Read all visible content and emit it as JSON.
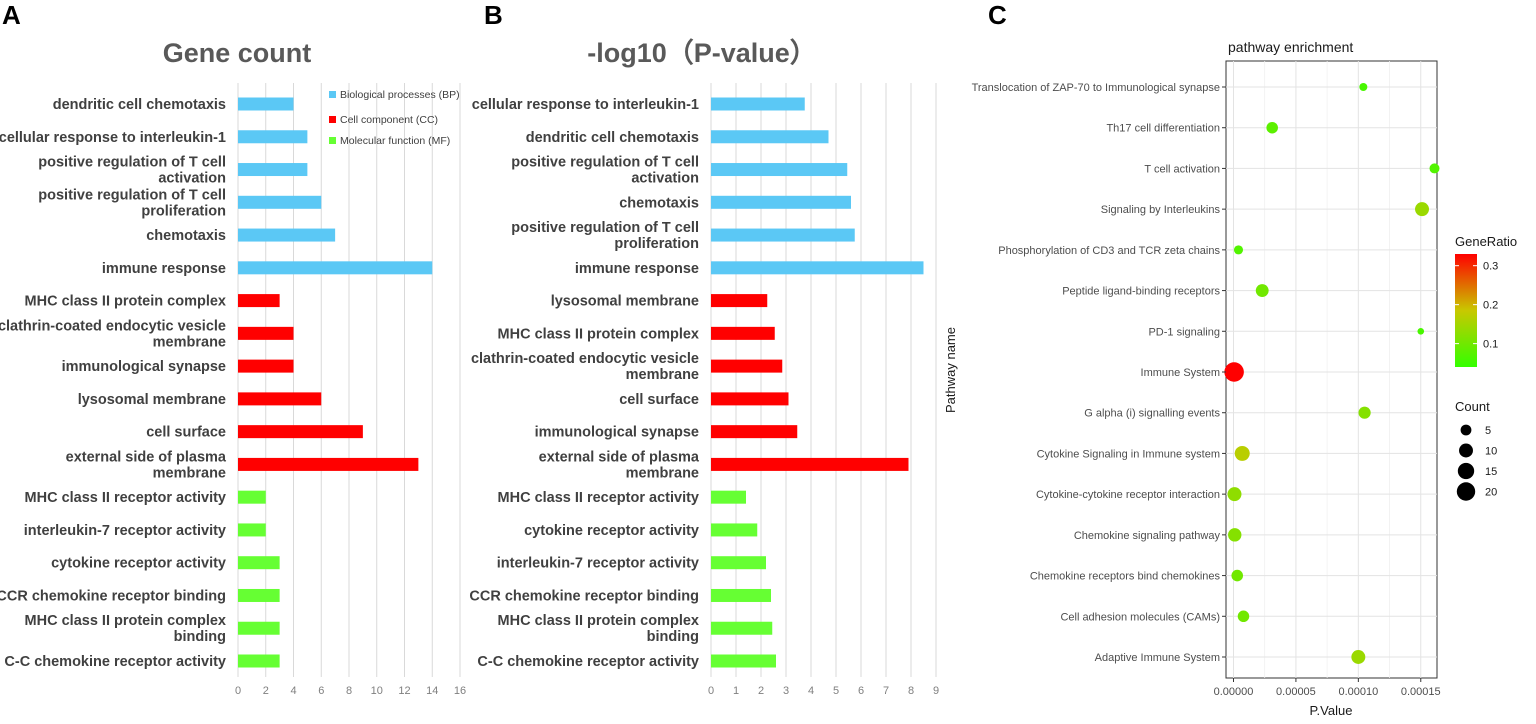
{
  "panel_labels": [
    "A",
    "B",
    "C"
  ],
  "colors": {
    "BP": "#5bc8f5",
    "CC": "#ff0000",
    "MF": "#66ff33"
  },
  "chart_data": [
    {
      "panel": "A",
      "type": "bar",
      "orientation": "horizontal",
      "title": "Gene count",
      "xlim": [
        0,
        16
      ],
      "xticks": [
        "0",
        "2",
        "4",
        "6",
        "8",
        "10",
        "12",
        "14",
        "16"
      ],
      "legend": [
        {
          "key": "BP",
          "label": "Biological processes (BP)"
        },
        {
          "key": "CC",
          "label": "Cell component (CC)"
        },
        {
          "key": "MF",
          "label": "Molecular function (MF)"
        }
      ],
      "categories": [
        {
          "label": [
            "dendritic cell chemotaxis"
          ],
          "value": 4,
          "group": "BP"
        },
        {
          "label": [
            "cellular response to interleukin-1"
          ],
          "value": 5,
          "group": "BP"
        },
        {
          "label": [
            "positive regulation of T cell",
            "activation"
          ],
          "value": 5,
          "group": "BP"
        },
        {
          "label": [
            "positive regulation of T cell",
            "proliferation"
          ],
          "value": 6,
          "group": "BP"
        },
        {
          "label": [
            "chemotaxis"
          ],
          "value": 7,
          "group": "BP"
        },
        {
          "label": [
            "immune response"
          ],
          "value": 14,
          "group": "BP"
        },
        {
          "label": [
            "MHC class II protein complex"
          ],
          "value": 3,
          "group": "CC"
        },
        {
          "label": [
            "clathrin-coated endocytic vesicle",
            "membrane"
          ],
          "value": 4,
          "group": "CC"
        },
        {
          "label": [
            "immunological synapse"
          ],
          "value": 4,
          "group": "CC"
        },
        {
          "label": [
            "lysosomal membrane"
          ],
          "value": 6,
          "group": "CC"
        },
        {
          "label": [
            "cell surface"
          ],
          "value": 9,
          "group": "CC"
        },
        {
          "label": [
            "external side of plasma",
            "membrane"
          ],
          "value": 13,
          "group": "CC"
        },
        {
          "label": [
            "MHC class II receptor activity"
          ],
          "value": 2,
          "group": "MF"
        },
        {
          "label": [
            "interleukin-7 receptor activity"
          ],
          "value": 2,
          "group": "MF"
        },
        {
          "label": [
            "cytokine receptor activity"
          ],
          "value": 3,
          "group": "MF"
        },
        {
          "label": [
            "CCR chemokine receptor binding"
          ],
          "value": 3,
          "group": "MF"
        },
        {
          "label": [
            "MHC class II protein complex",
            "binding"
          ],
          "value": 3,
          "group": "MF"
        },
        {
          "label": [
            "C-C chemokine receptor activity"
          ],
          "value": 3,
          "group": "MF"
        }
      ]
    },
    {
      "panel": "B",
      "type": "bar",
      "orientation": "horizontal",
      "title": "-log10（P-value）",
      "xlim": [
        0,
        9
      ],
      "xticks": [
        "0",
        "1",
        "2",
        "3",
        "4",
        "5",
        "6",
        "7",
        "8",
        "9"
      ],
      "categories": [
        {
          "label": [
            "cellular response to interleukin-1"
          ],
          "value": 3.75,
          "group": "BP"
        },
        {
          "label": [
            "dendritic cell chemotaxis"
          ],
          "value": 4.7,
          "group": "BP"
        },
        {
          "label": [
            "positive regulation of T cell",
            "activation"
          ],
          "value": 5.45,
          "group": "BP"
        },
        {
          "label": [
            "chemotaxis"
          ],
          "value": 5.6,
          "group": "BP"
        },
        {
          "label": [
            "positive regulation of T cell",
            "proliferation"
          ],
          "value": 5.75,
          "group": "BP"
        },
        {
          "label": [
            "immune response"
          ],
          "value": 8.5,
          "group": "BP"
        },
        {
          "label": [
            "lysosomal membrane"
          ],
          "value": 2.25,
          "group": "CC"
        },
        {
          "label": [
            "MHC class II protein complex"
          ],
          "value": 2.55,
          "group": "CC"
        },
        {
          "label": [
            "clathrin-coated endocytic vesicle",
            "membrane"
          ],
          "value": 2.85,
          "group": "CC"
        },
        {
          "label": [
            "cell surface"
          ],
          "value": 3.1,
          "group": "CC"
        },
        {
          "label": [
            "immunological synapse"
          ],
          "value": 3.45,
          "group": "CC"
        },
        {
          "label": [
            "external side of plasma",
            "membrane"
          ],
          "value": 7.9,
          "group": "CC"
        },
        {
          "label": [
            "MHC class II receptor activity"
          ],
          "value": 1.4,
          "group": "MF"
        },
        {
          "label": [
            "cytokine receptor activity"
          ],
          "value": 1.85,
          "group": "MF"
        },
        {
          "label": [
            "interleukin-7 receptor activity"
          ],
          "value": 2.2,
          "group": "MF"
        },
        {
          "label": [
            "CCR chemokine receptor binding"
          ],
          "value": 2.4,
          "group": "MF"
        },
        {
          "label": [
            "MHC class II protein complex",
            "binding"
          ],
          "value": 2.45,
          "group": "MF"
        },
        {
          "label": [
            "C-C chemokine receptor activity"
          ],
          "value": 2.6,
          "group": "MF"
        }
      ]
    },
    {
      "panel": "C",
      "type": "scatter",
      "title": "pathway   enrichment",
      "xlabel": "P.Value",
      "ylabel": "Pathway name",
      "xlim": [
        -6e-06,
        0.000163
      ],
      "xticks": [
        0,
        5e-05,
        0.0001,
        0.00015
      ],
      "xtick_labels": [
        "0.00000",
        "0.00005",
        "0.00010",
        "0.00015"
      ],
      "color_legend": {
        "title": "GeneRatio",
        "range": [
          0.04,
          0.33
        ],
        "ticks": [
          0.1,
          0.2,
          0.3
        ],
        "tick_labels": [
          "0.1",
          "0.2",
          "0.3"
        ],
        "low_color": "#33ff00",
        "mid_color": "#c8c800",
        "high_color": "#ff0000"
      },
      "size_legend": {
        "title": "Count",
        "values": [
          5,
          10,
          15,
          20
        ],
        "labels": [
          "5",
          "10",
          "15",
          "20"
        ]
      },
      "points": [
        {
          "pathway": "Translocation of ZAP-70 to Immunological synapse",
          "p": 0.000104,
          "ratio": 0.06,
          "count": 2
        },
        {
          "pathway": "Th17 cell differentiation",
          "p": 3.1e-05,
          "ratio": 0.08,
          "count": 6
        },
        {
          "pathway": "T cell activation",
          "p": 0.000161,
          "ratio": 0.07,
          "count": 4
        },
        {
          "pathway": "Signaling by Interleukins",
          "p": 0.000151,
          "ratio": 0.14,
          "count": 10
        },
        {
          "pathway": "Phosphorylation of CD3 and TCR zeta chains",
          "p": 4e-06,
          "ratio": 0.07,
          "count": 3
        },
        {
          "pathway": "Peptide ligand-binding receptors",
          "p": 2.3e-05,
          "ratio": 0.1,
          "count": 8
        },
        {
          "pathway": "PD-1 signaling",
          "p": 0.00015,
          "ratio": 0.06,
          "count": 1
        },
        {
          "pathway": "Immune System",
          "p": 5e-07,
          "ratio": 0.33,
          "count": 23
        },
        {
          "pathway": "G alpha (i) signalling events",
          "p": 0.000105,
          "ratio": 0.12,
          "count": 7
        },
        {
          "pathway": "Cytokine Signaling in Immune system",
          "p": 7e-06,
          "ratio": 0.17,
          "count": 12
        },
        {
          "pathway": "Cytokine-cytokine receptor interaction",
          "p": 8e-07,
          "ratio": 0.13,
          "count": 10
        },
        {
          "pathway": "Chemokine signaling pathway",
          "p": 1e-06,
          "ratio": 0.12,
          "count": 9
        },
        {
          "pathway": "Chemokine receptors bind chemokines",
          "p": 3e-06,
          "ratio": 0.1,
          "count": 6
        },
        {
          "pathway": "Cell adhesion molecules (CAMs)",
          "p": 8e-06,
          "ratio": 0.1,
          "count": 6
        },
        {
          "pathway": "Adaptive Immune System",
          "p": 0.0001,
          "ratio": 0.14,
          "count": 10
        }
      ]
    }
  ]
}
